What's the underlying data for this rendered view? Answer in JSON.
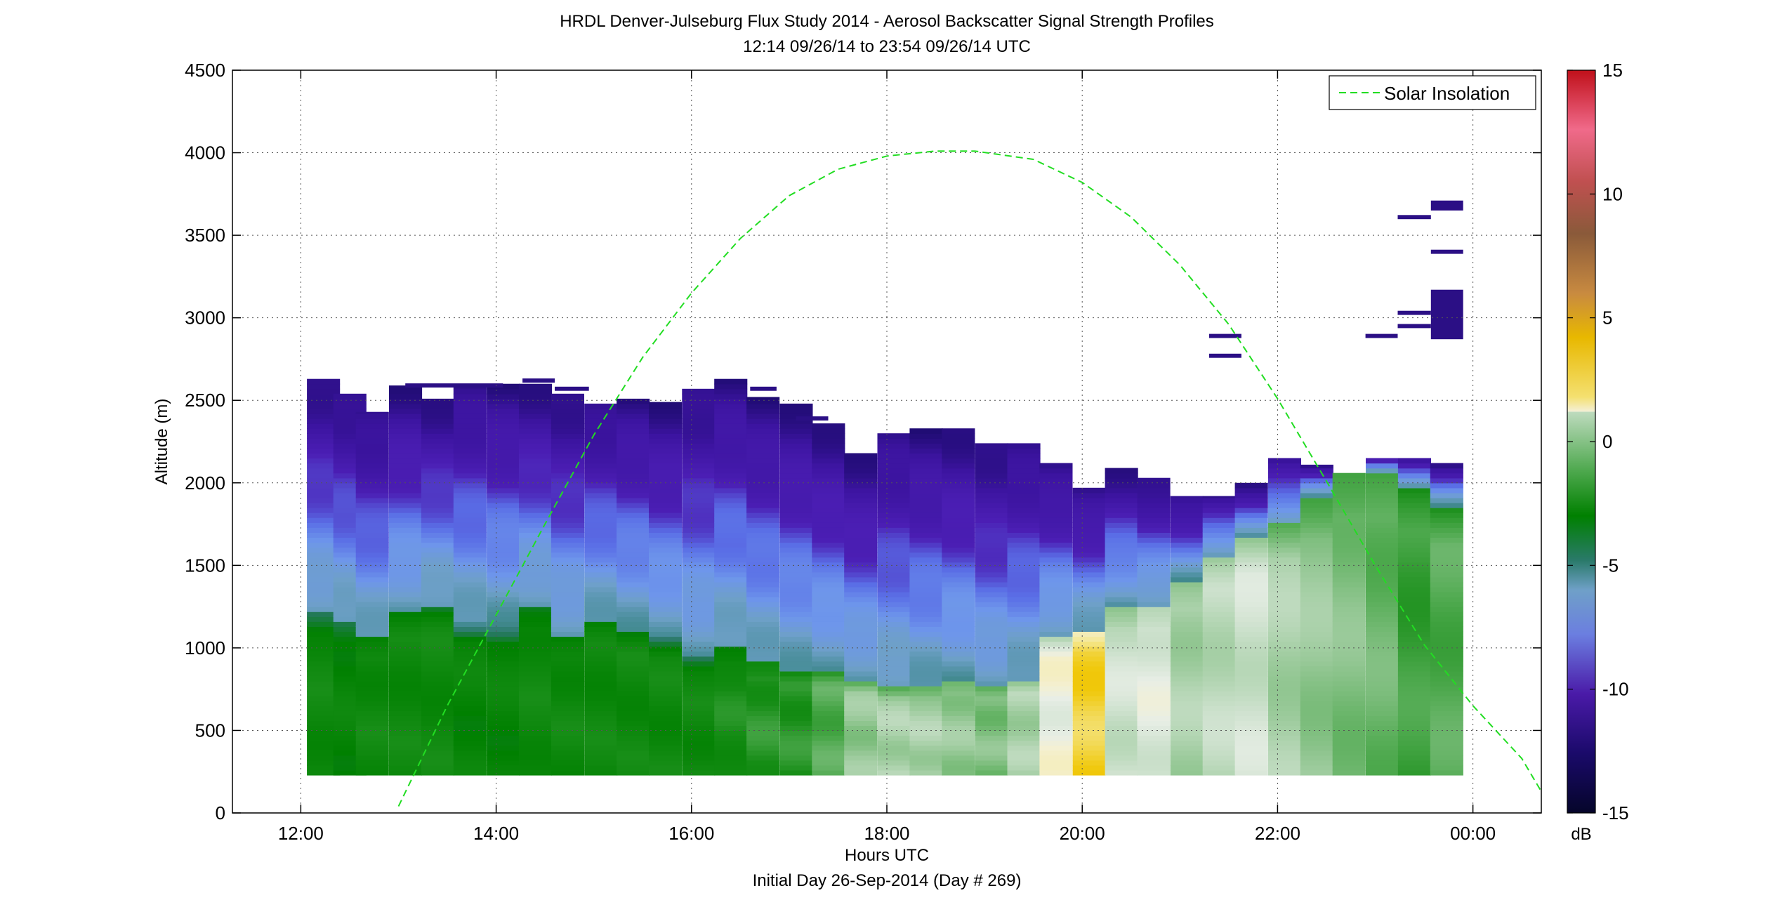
{
  "chart_data": {
    "type": "heatmap",
    "title": "HRDL Denver-Julseburg Flux Study 2014 - Aerosol Backscatter Signal Strength Profiles",
    "subtitle": "12:14 09/26/14 to 23:54 09/26/14  UTC",
    "xlabel": "Hours UTC",
    "xlabel2": "Initial Day 26-Sep-2014 (Day # 269)",
    "ylabel": "Altitude (m)",
    "xlim": [
      11.3,
      24.7
    ],
    "ylim": [
      0,
      4500
    ],
    "x_ticks": [
      12,
      14,
      16,
      18,
      20,
      22,
      24
    ],
    "x_tick_labels": [
      "12:00",
      "14:00",
      "16:00",
      "18:00",
      "20:00",
      "22:00",
      "00:00"
    ],
    "y_ticks": [
      0,
      500,
      1000,
      1500,
      2000,
      2500,
      3000,
      3500,
      4000,
      4500
    ],
    "y_tick_labels": [
      "0",
      "500",
      "1000",
      "1500",
      "2000",
      "2500",
      "3000",
      "3500",
      "4000",
      "4500"
    ],
    "grid": true,
    "legend": {
      "position": "top-right",
      "entries": [
        "Solar Insolation"
      ]
    },
    "colorbar": {
      "label": "dB",
      "range": [
        -15,
        15
      ],
      "ticks": [
        -15,
        -10,
        -5,
        0,
        5,
        10,
        15
      ],
      "tick_labels": [
        "-15",
        "-10",
        "-5",
        "0",
        "5",
        "10",
        "15"
      ]
    },
    "profiles": {
      "hours": [
        12.23,
        12.5,
        12.73,
        13.07,
        13.4,
        13.73,
        14.07,
        14.4,
        14.73,
        15.07,
        15.4,
        15.73,
        16.07,
        16.4,
        16.73,
        17.07,
        17.4,
        17.73,
        18.07,
        18.4,
        18.73,
        19.07,
        19.4,
        19.73,
        20.07,
        20.4,
        20.73,
        21.07,
        21.4,
        21.73,
        22.07,
        22.4,
        22.73,
        23.07,
        23.4,
        23.73
      ],
      "top_m": [
        2630,
        2540,
        2430,
        2590,
        2510,
        2590,
        2600,
        2600,
        2540,
        2480,
        2510,
        2490,
        2570,
        2630,
        2520,
        2480,
        2360,
        2180,
        2300,
        2330,
        2330,
        2240,
        2240,
        2120,
        1970,
        2090,
        2030,
        1920,
        1920,
        2000,
        2150,
        2110,
        2060,
        2150,
        2150,
        2120
      ],
      "ml_top_m": [
        1200,
        1150,
        1050,
        1200,
        1250,
        1150,
        1150,
        1250,
        1050,
        1150,
        1100,
        1050,
        950,
        1000,
        900,
        850,
        850,
        800,
        750,
        750,
        800,
        750,
        800,
        1050,
        1100,
        1250,
        1250,
        1400,
        1550,
        1650,
        1750,
        1900,
        2050,
        2050,
        1950,
        1850
      ],
      "ml_db": [
        -6,
        -6.5,
        -6,
        -6,
        -6,
        -6.5,
        -6.5,
        -6,
        -6,
        -6,
        -6,
        -6,
        -6,
        -5.5,
        -5,
        -5,
        -4,
        -2.5,
        -2,
        -2,
        -2.5,
        -3,
        -2,
        0,
        2.5,
        -1,
        -0.5,
        -2,
        -1.5,
        -1,
        -2,
        -2.5,
        -3,
        -3.5,
        -4.5,
        -4
      ],
      "bottom_m": 230
    },
    "elevated_layers": [
      {
        "hour_start": 13.07,
        "hour_end": 14.07,
        "alt_m": 2590
      },
      {
        "hour_start": 14.27,
        "hour_end": 14.6,
        "alt_m": 2620
      },
      {
        "hour_start": 14.6,
        "hour_end": 14.95,
        "alt_m": 2570
      },
      {
        "hour_start": 16.6,
        "hour_end": 16.87,
        "alt_m": 2570
      },
      {
        "hour_start": 17.07,
        "hour_end": 17.4,
        "alt_m": 2390
      },
      {
        "hour_start": 21.3,
        "hour_end": 21.63,
        "alt_m": 2890
      },
      {
        "hour_start": 21.3,
        "hour_end": 21.63,
        "alt_m": 2770
      },
      {
        "hour_start": 22.9,
        "hour_end": 23.23,
        "alt_m": 2890
      },
      {
        "hour_start": 23.23,
        "hour_end": 23.57,
        "alt_m": 3030
      },
      {
        "hour_start": 23.23,
        "hour_end": 23.57,
        "alt_m": 2950
      },
      {
        "hour_start": 23.23,
        "hour_end": 23.57,
        "alt_m": 3610
      },
      {
        "hour_start": 23.57,
        "hour_end": 23.9,
        "alt_m": 3020,
        "thickness_m": 300
      },
      {
        "hour_start": 23.57,
        "hour_end": 23.9,
        "alt_m": 3400
      },
      {
        "hour_start": 23.57,
        "hour_end": 23.9,
        "alt_m": 3680,
        "thickness_m": 60
      }
    ],
    "series": [
      {
        "name": "Solar Insolation",
        "style": "dashed",
        "color": "#22dd22",
        "x": [
          13.0,
          13.5,
          14.0,
          14.5,
          15.0,
          15.5,
          16.0,
          16.5,
          17.0,
          17.5,
          18.0,
          18.5,
          18.9,
          19.5,
          20.0,
          20.5,
          21.0,
          21.5,
          22.0,
          22.5,
          23.0,
          23.5,
          24.0,
          24.5,
          24.7
        ],
        "y": [
          40,
          650,
          1200,
          1750,
          2290,
          2760,
          3150,
          3480,
          3740,
          3900,
          3980,
          4010,
          4010,
          3960,
          3820,
          3610,
          3320,
          2960,
          2510,
          2010,
          1500,
          1020,
          650,
          330,
          130
        ]
      }
    ]
  }
}
